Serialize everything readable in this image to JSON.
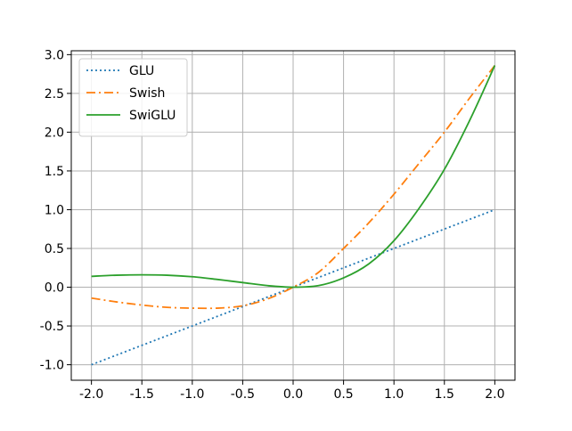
{
  "chart_data": {
    "type": "line",
    "title": "",
    "xlabel": "",
    "ylabel": "",
    "xlim": [
      -2.2,
      2.2
    ],
    "ylim": [
      -1.2,
      3.05
    ],
    "xticks": [
      -2.0,
      -1.5,
      -1.0,
      -0.5,
      0.0,
      0.5,
      1.0,
      1.5,
      2.0
    ],
    "yticks": [
      -1.0,
      -0.5,
      0.0,
      0.5,
      1.0,
      1.5,
      2.0,
      2.5,
      3.0
    ],
    "xtick_labels": [
      "-2.0",
      "-1.5",
      "-1.0",
      "-0.5",
      "0.0",
      "0.5",
      "1.0",
      "1.5",
      "2.0"
    ],
    "ytick_labels": [
      "-1.0",
      "-0.5",
      "0.0",
      "0.5",
      "1.0",
      "1.5",
      "2.0",
      "2.5",
      "3.0"
    ],
    "grid": true,
    "legend_position": "top-left",
    "x": [
      -2.0,
      -1.75,
      -1.5,
      -1.25,
      -1.0,
      -0.75,
      -0.5,
      -0.25,
      0.0,
      0.25,
      0.5,
      0.75,
      1.0,
      1.25,
      1.5,
      1.75,
      2.0
    ],
    "series": [
      {
        "name": "GLU",
        "color": "#1f77b4",
        "style": "dotted",
        "values": [
          -1.0,
          -0.875,
          -0.75,
          -0.625,
          -0.5,
          -0.375,
          -0.25,
          -0.125,
          0.0,
          0.125,
          0.25,
          0.375,
          0.5,
          0.625,
          0.75,
          0.875,
          1.0
        ]
      },
      {
        "name": "Swish",
        "color": "#ff7f0e",
        "style": "dashdot",
        "values": [
          -0.14,
          -0.19,
          -0.23,
          -0.26,
          -0.27,
          -0.27,
          -0.24,
          -0.15,
          0.0,
          0.19,
          0.5,
          0.83,
          1.2,
          1.6,
          2.0,
          2.44,
          2.86
        ]
      },
      {
        "name": "SwiGLU",
        "color": "#2ca02c",
        "style": "solid",
        "values": [
          0.14,
          0.155,
          0.16,
          0.155,
          0.135,
          0.1,
          0.06,
          0.02,
          0.0,
          0.02,
          0.12,
          0.3,
          0.6,
          1.02,
          1.52,
          2.15,
          2.86
        ]
      }
    ]
  }
}
